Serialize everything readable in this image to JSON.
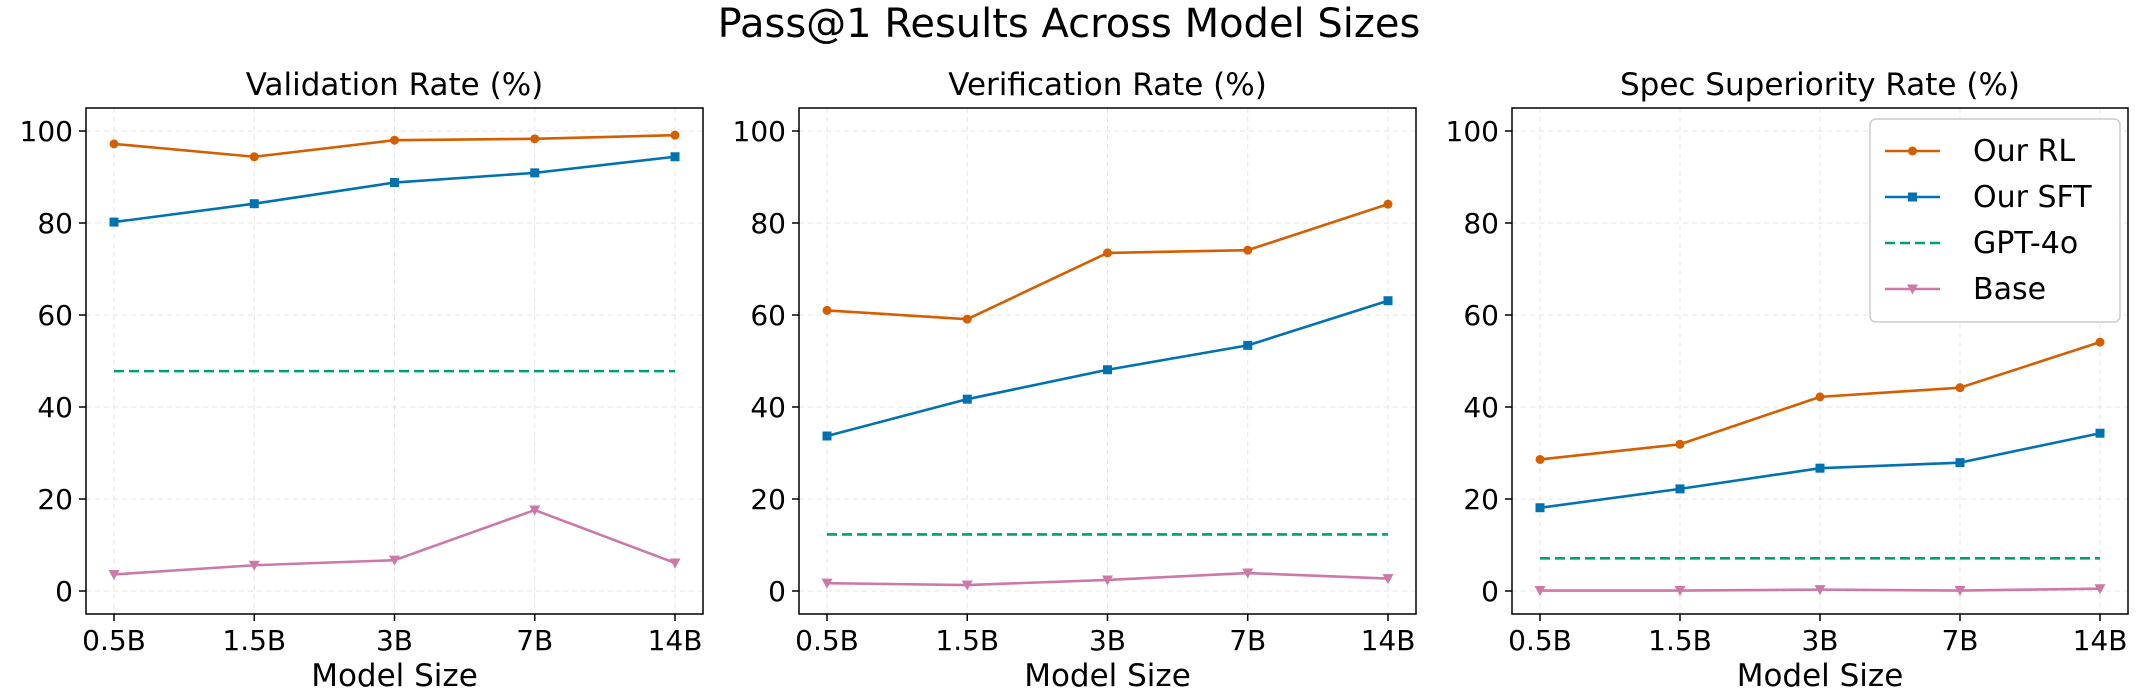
{
  "title": "Pass@1 Results Across Model Sizes",
  "colors": {
    "our_rl": "#d55e00",
    "our_sft": "#0072b2",
    "gpt4o": "#009e73",
    "base": "#cc79a7",
    "grid": "#e6e6e6"
  },
  "legend_placement": "upper right of third panel",
  "chart_data": [
    {
      "type": "line",
      "title": "Validation Rate (%)",
      "xlabel": "Model Size",
      "ylabel": "",
      "categories": [
        "0.5B",
        "1.5B",
        "3B",
        "7B",
        "14B"
      ],
      "ylim": [
        -5,
        105
      ],
      "yticks": [
        0,
        20,
        40,
        60,
        80,
        100
      ],
      "grid": true,
      "legend": false,
      "series": [
        {
          "name": "Our RL",
          "marker": "circle",
          "style": "solid",
          "values": [
            97.2,
            94.4,
            98.0,
            98.3,
            99.1
          ]
        },
        {
          "name": "Our SFT",
          "marker": "square",
          "style": "solid",
          "values": [
            80.2,
            84.2,
            88.8,
            90.9,
            94.4
          ]
        },
        {
          "name": "GPT-4o",
          "marker": "none",
          "style": "dashed",
          "values": [
            47.8,
            47.8,
            47.8,
            47.8,
            47.8
          ]
        },
        {
          "name": "Base",
          "marker": "triangle-down",
          "style": "solid",
          "values": [
            3.6,
            5.6,
            6.7,
            17.6,
            6.1
          ]
        }
      ]
    },
    {
      "type": "line",
      "title": "Verification Rate (%)",
      "xlabel": "Model Size",
      "ylabel": "",
      "categories": [
        "0.5B",
        "1.5B",
        "3B",
        "7B",
        "14B"
      ],
      "ylim": [
        -5,
        105
      ],
      "yticks": [
        0,
        20,
        40,
        60,
        80,
        100
      ],
      "grid": true,
      "legend": false,
      "series": [
        {
          "name": "Our RL",
          "marker": "circle",
          "style": "solid",
          "values": [
            61.0,
            59.1,
            73.5,
            74.1,
            84.1
          ]
        },
        {
          "name": "Our SFT",
          "marker": "square",
          "style": "solid",
          "values": [
            33.7,
            41.7,
            48.1,
            53.4,
            63.1
          ]
        },
        {
          "name": "GPT-4o",
          "marker": "none",
          "style": "dashed",
          "values": [
            12.3,
            12.3,
            12.3,
            12.3,
            12.3
          ]
        },
        {
          "name": "Base",
          "marker": "triangle-down",
          "style": "solid",
          "values": [
            1.7,
            1.3,
            2.4,
            3.9,
            2.7
          ]
        }
      ]
    },
    {
      "type": "line",
      "title": "Spec Superiority Rate (%)",
      "xlabel": "Model Size",
      "ylabel": "",
      "categories": [
        "0.5B",
        "1.5B",
        "3B",
        "7B",
        "14B"
      ],
      "ylim": [
        -5,
        105
      ],
      "yticks": [
        0,
        20,
        40,
        60,
        80,
        100
      ],
      "grid": true,
      "legend": true,
      "series": [
        {
          "name": "Our RL",
          "marker": "circle",
          "style": "solid",
          "values": [
            28.6,
            31.9,
            42.2,
            44.2,
            54.1
          ]
        },
        {
          "name": "Our SFT",
          "marker": "square",
          "style": "solid",
          "values": [
            18.1,
            22.2,
            26.7,
            27.9,
            34.3
          ]
        },
        {
          "name": "GPT-4o",
          "marker": "none",
          "style": "dashed",
          "values": [
            7.1,
            7.1,
            7.1,
            7.1,
            7.1
          ]
        },
        {
          "name": "Base",
          "marker": "triangle-down",
          "style": "solid",
          "values": [
            0.1,
            0.1,
            0.3,
            0.1,
            0.5
          ]
        }
      ]
    }
  ]
}
